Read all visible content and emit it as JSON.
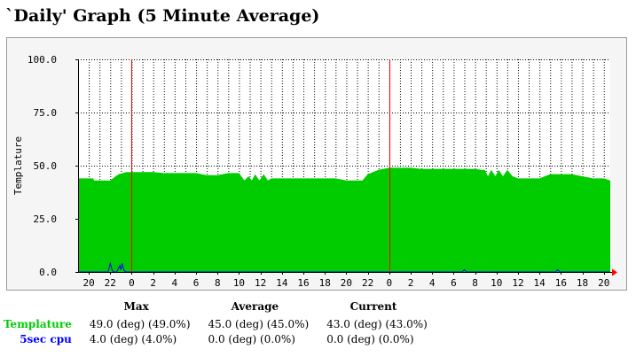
{
  "page": {
    "title": "`Daily' Graph (5 Minute Average)"
  },
  "chart_data": {
    "type": "area",
    "ylabel": "Templature",
    "ylim": [
      0,
      100
    ],
    "y_ticks": [
      "0.0",
      "25.0",
      "50.0",
      "75.0",
      "100.0"
    ],
    "x_tick_labels": [
      "20",
      "22",
      "0",
      "2",
      "4",
      "6",
      "8",
      "10",
      "12",
      "14",
      "16",
      "18",
      "20",
      "22",
      "0",
      "2",
      "4",
      "6",
      "8",
      "10",
      "12",
      "14",
      "16",
      "18",
      "20"
    ],
    "x_unit": "hour of day",
    "x_range_hours": [
      -5,
      44.6
    ],
    "day_boundaries": [
      0,
      24
    ],
    "grid": true,
    "series": [
      {
        "name": "Templature",
        "color": "#00cc00",
        "style": "area",
        "x": [
          -5,
          -3.6,
          -3.5,
          -2,
          -1.5,
          -1.2,
          -0.5,
          0,
          1,
          2,
          3,
          4,
          5,
          6,
          7,
          8,
          9,
          10,
          10.5,
          10.9,
          11.2,
          11.5,
          11.9,
          12.3,
          12.7,
          13,
          14,
          15,
          16,
          17,
          18,
          19,
          20,
          21,
          21.5,
          22,
          23,
          24,
          25,
          26,
          27,
          28,
          29,
          30,
          31,
          32,
          32.6,
          32.9,
          33.2,
          33.5,
          33.9,
          34.2,
          34.6,
          35,
          35.5,
          36,
          37,
          38,
          39,
          40,
          41,
          42,
          43,
          44,
          44.6
        ],
        "y": [
          44,
          44,
          43,
          43,
          45,
          46,
          47,
          47,
          47,
          47,
          46.5,
          46.5,
          46.5,
          46.5,
          45.5,
          45.5,
          46.5,
          46.5,
          43,
          45,
          43,
          46,
          43,
          46,
          43,
          44,
          44,
          44,
          44,
          44,
          44,
          44,
          43,
          43,
          43,
          46,
          48,
          49,
          49,
          49,
          48.5,
          48.5,
          48.5,
          48.5,
          48.5,
          48.5,
          48,
          48,
          45,
          48,
          45,
          48,
          45,
          48,
          45,
          44,
          44,
          44,
          46,
          46,
          46,
          45,
          44,
          44,
          43
        ]
      },
      {
        "name": "5sec cpu",
        "color": "#0000ff",
        "style": "line",
        "x": [
          -5,
          -2.2,
          -2,
          -1.8,
          -1.6,
          -1.4,
          -1.1,
          -1,
          -0.9,
          -0.7,
          -0.5,
          0,
          24,
          30.8,
          31,
          31.2,
          36,
          39.5,
          39.7,
          39.9,
          44.6
        ],
        "y": [
          0,
          0,
          4,
          0.5,
          0,
          0,
          3,
          1,
          4,
          0.5,
          0,
          0,
          0,
          0,
          1,
          0,
          0,
          0,
          1,
          0,
          0
        ]
      }
    ],
    "legend": {
      "headers": [
        "Max",
        "Average",
        "Current"
      ],
      "rows": [
        {
          "name": "Templature",
          "color": "#00cc00",
          "max": "49.0 (deg) (49.0%)",
          "average": "45.0 (deg) (45.0%)",
          "current": "43.0 (deg) (43.0%)"
        },
        {
          "name": "5sec cpu",
          "color": "#0000ff",
          "max": "4.0 (deg) (4.0%)",
          "average": "0.0 (deg) (0.0%)",
          "current": "0.0 (deg) (0.0%)"
        }
      ]
    }
  }
}
